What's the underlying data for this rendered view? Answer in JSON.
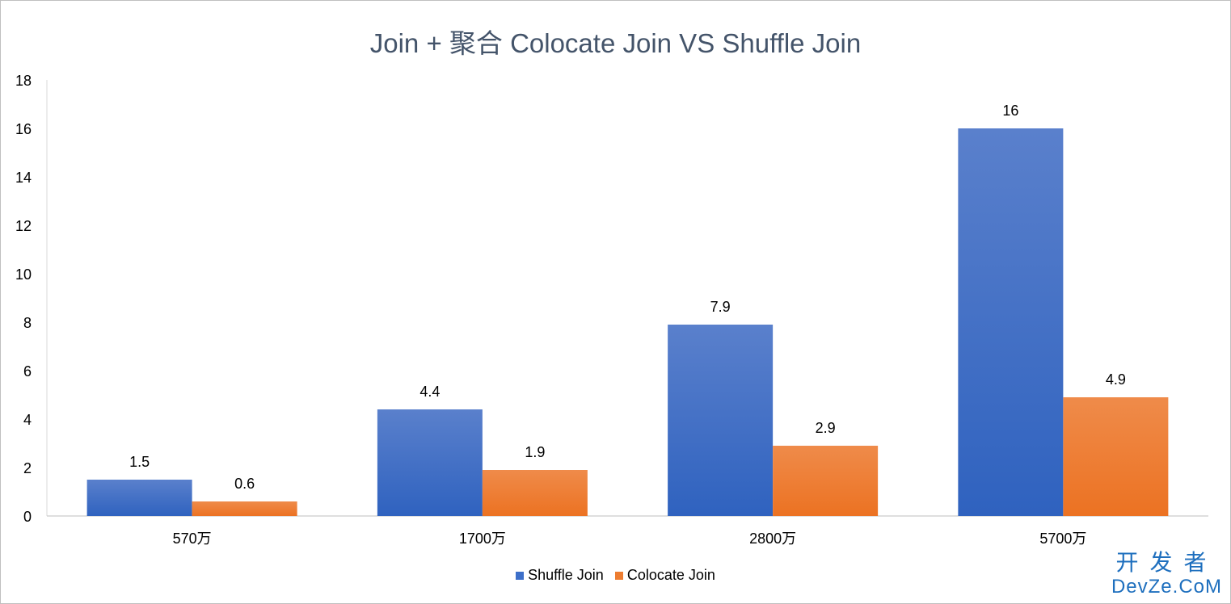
{
  "chart_data": {
    "type": "bar",
    "title": "Join + 聚合 Colocate Join VS Shuffle Join",
    "categories": [
      "570万",
      "1700万",
      "2800万",
      "5700万"
    ],
    "series": [
      {
        "name": "Shuffle Join",
        "values": [
          1.5,
          4.4,
          7.9,
          16
        ],
        "labels": [
          "1.5",
          "4.4",
          "7.9",
          "16"
        ],
        "color": "#3d6fc9"
      },
      {
        "name": "Colocate Join",
        "values": [
          0.6,
          1.9,
          2.9,
          4.9
        ],
        "labels": [
          "0.6",
          "1.9",
          "2.9",
          "4.9"
        ],
        "color": "#ed7d31"
      }
    ],
    "ylim": [
      0,
      18
    ],
    "yticks": [
      0,
      2,
      4,
      6,
      8,
      10,
      12,
      14,
      16,
      18
    ],
    "ytick_labels": [
      "0",
      "2",
      "4",
      "6",
      "8",
      "10",
      "12",
      "14",
      "16",
      "18"
    ],
    "xlabel": "",
    "ylabel": "",
    "grid": false,
    "legend_position": "bottom"
  },
  "watermark": {
    "top": "开发者",
    "bottom": "DevZe.CoM"
  }
}
